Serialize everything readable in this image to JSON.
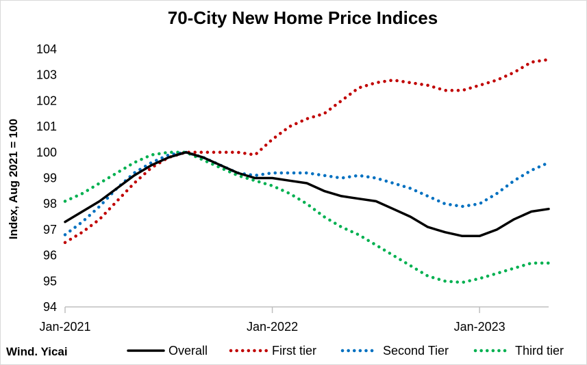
{
  "chart_data": {
    "type": "line",
    "title": "70-City New Home Price Indices",
    "xlabel": "",
    "ylabel": "Index, Aug 2021 = 100",
    "ylim": [
      94,
      104
    ],
    "yticks": [
      94,
      95,
      96,
      97,
      98,
      99,
      100,
      101,
      102,
      103,
      104
    ],
    "x_tick_labels": [
      "Jan-2021",
      "Jan-2022",
      "Jan-2023"
    ],
    "x": [
      "2021-01",
      "2021-02",
      "2021-03",
      "2021-04",
      "2021-05",
      "2021-06",
      "2021-07",
      "2021-08",
      "2021-09",
      "2021-10",
      "2021-11",
      "2021-12",
      "2022-01",
      "2022-02",
      "2022-03",
      "2022-04",
      "2022-05",
      "2022-06",
      "2022-07",
      "2022-08",
      "2022-09",
      "2022-10",
      "2022-11",
      "2022-12",
      "2023-01",
      "2023-02",
      "2023-03",
      "2023-04",
      "2023-05"
    ],
    "series": [
      {
        "name": "Overall",
        "color": "#000000",
        "style": "solid",
        "values": [
          97.3,
          97.7,
          98.1,
          98.6,
          99.1,
          99.5,
          99.8,
          100.0,
          99.8,
          99.5,
          99.2,
          99.0,
          99.0,
          98.9,
          98.8,
          98.5,
          98.3,
          98.2,
          98.1,
          97.8,
          97.5,
          97.1,
          96.9,
          96.75,
          96.75,
          97.0,
          97.4,
          97.7,
          97.8
        ]
      },
      {
        "name": "First tier",
        "color": "#c00000",
        "style": "dotted",
        "values": [
          96.5,
          96.9,
          97.4,
          98.1,
          98.8,
          99.4,
          99.8,
          100.0,
          100.0,
          100.0,
          100.0,
          99.9,
          100.5,
          101.0,
          101.3,
          101.5,
          102.0,
          102.5,
          102.7,
          102.8,
          102.7,
          102.6,
          102.4,
          102.4,
          102.6,
          102.8,
          103.1,
          103.5,
          103.6
        ]
      },
      {
        "name": "Second Tier",
        "color": "#0070c0",
        "style": "dotted",
        "values": [
          96.8,
          97.3,
          97.9,
          98.6,
          99.2,
          99.6,
          99.9,
          100.0,
          99.8,
          99.5,
          99.2,
          99.1,
          99.2,
          99.2,
          99.2,
          99.1,
          99.0,
          99.1,
          99.0,
          98.8,
          98.6,
          98.3,
          98.0,
          97.9,
          98.0,
          98.4,
          98.9,
          99.3,
          99.6
        ]
      },
      {
        "name": "Third tier",
        "color": "#00b050",
        "style": "dotted",
        "values": [
          98.1,
          98.4,
          98.8,
          99.2,
          99.6,
          99.9,
          100.0,
          100.0,
          99.7,
          99.4,
          99.1,
          98.9,
          98.7,
          98.4,
          98.0,
          97.5,
          97.1,
          96.8,
          96.4,
          96.0,
          95.6,
          95.2,
          95.0,
          94.95,
          95.1,
          95.3,
          95.5,
          95.7,
          95.7
        ]
      }
    ],
    "legend_position": "bottom",
    "grid": false,
    "source": "Wind. Yicai"
  }
}
